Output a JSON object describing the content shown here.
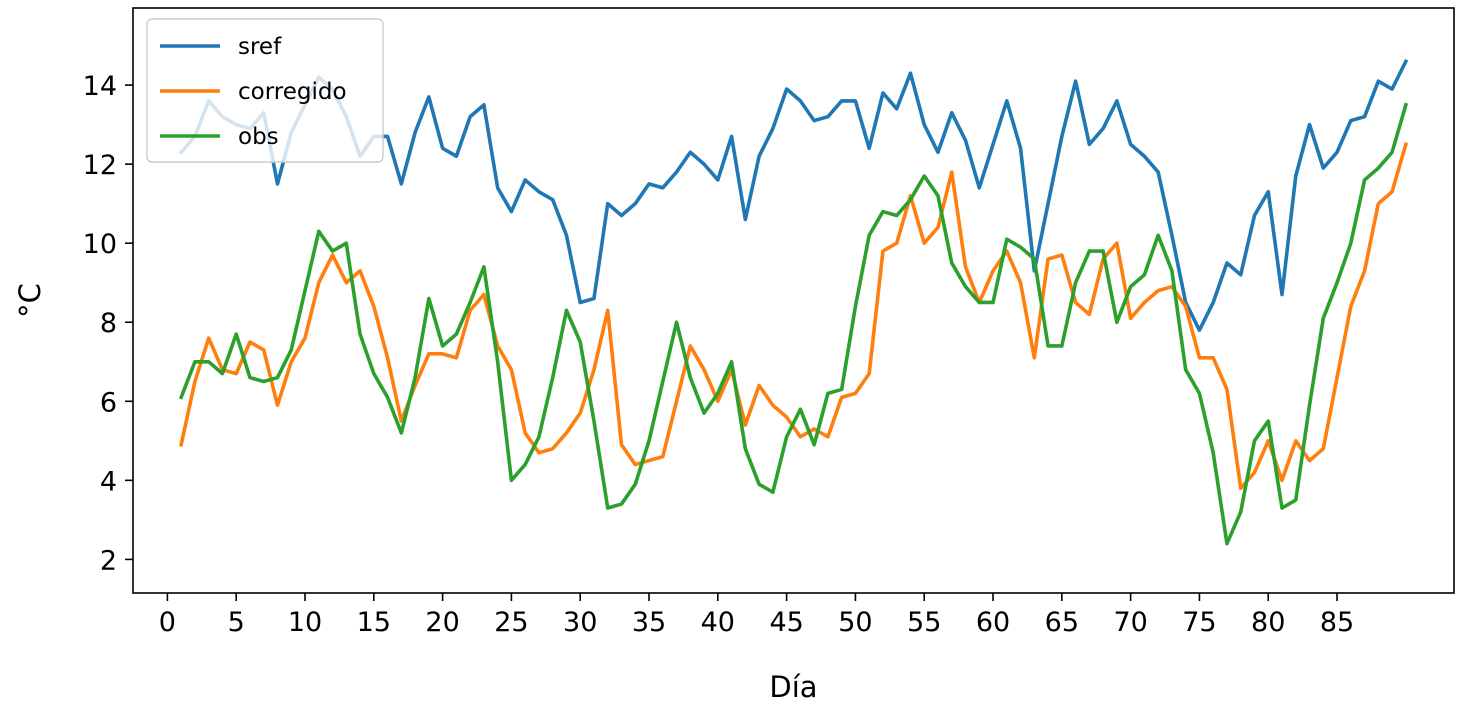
{
  "chart_data": {
    "type": "line",
    "title": "",
    "xlabel": "Día",
    "ylabel": "°C",
    "xlim": [
      -2.5,
      93.5
    ],
    "ylim": [
      1.15,
      15.95
    ],
    "xticks": [
      0,
      5,
      10,
      15,
      20,
      25,
      30,
      35,
      40,
      45,
      50,
      55,
      60,
      65,
      70,
      75,
      80,
      85
    ],
    "yticks": [
      2,
      4,
      6,
      8,
      10,
      12,
      14
    ],
    "grid": false,
    "legend": {
      "placement": "top-left"
    },
    "x": [
      1,
      2,
      3,
      4,
      5,
      6,
      7,
      8,
      9,
      10,
      11,
      12,
      13,
      14,
      15,
      16,
      17,
      18,
      19,
      20,
      21,
      22,
      23,
      24,
      25,
      26,
      27,
      28,
      29,
      30,
      31,
      32,
      33,
      34,
      35,
      36,
      37,
      38,
      39,
      40,
      41,
      42,
      43,
      44,
      45,
      46,
      47,
      48,
      49,
      50,
      51,
      52,
      53,
      54,
      55,
      56,
      57,
      58,
      59,
      60,
      61,
      62,
      63,
      64,
      65,
      66,
      67,
      68,
      69,
      70,
      71,
      72,
      73,
      74,
      75,
      76,
      77,
      78,
      79,
      80,
      81,
      82,
      83,
      84,
      85,
      86,
      87,
      88,
      89,
      90
    ],
    "series": [
      {
        "name": "sref",
        "color": "#1f77b4",
        "values": [
          12.3,
          12.7,
          13.6,
          13.2,
          13.0,
          12.9,
          13.3,
          11.5,
          12.8,
          13.5,
          14.2,
          13.9,
          13.2,
          12.2,
          12.7,
          12.7,
          11.5,
          12.8,
          13.7,
          12.4,
          12.2,
          13.2,
          13.5,
          11.4,
          10.8,
          11.6,
          11.3,
          11.1,
          10.2,
          8.5,
          8.6,
          11.0,
          10.7,
          11.0,
          11.5,
          11.4,
          11.8,
          12.3,
          12.0,
          11.6,
          12.7,
          10.6,
          12.2,
          12.9,
          13.9,
          13.6,
          13.1,
          13.2,
          13.6,
          13.6,
          12.4,
          13.8,
          13.4,
          14.3,
          13.0,
          12.3,
          13.3,
          12.6,
          11.4,
          12.5,
          13.6,
          12.4,
          9.3,
          11.0,
          12.7,
          14.1,
          12.5,
          12.9,
          13.6,
          12.5,
          12.2,
          11.8,
          10.2,
          8.5,
          7.8,
          8.5,
          9.5,
          9.2,
          10.7,
          11.3,
          8.7,
          11.7,
          13.0,
          11.9,
          12.3,
          13.1,
          13.2,
          14.1,
          13.9,
          14.6
        ]
      },
      {
        "name": "corregido",
        "color": "#ff7f0e",
        "values": [
          4.9,
          6.5,
          7.6,
          6.8,
          6.7,
          7.5,
          7.3,
          5.9,
          7.0,
          7.6,
          9.0,
          9.7,
          9.0,
          9.3,
          8.4,
          7.1,
          5.5,
          6.4,
          7.2,
          7.2,
          7.1,
          8.3,
          8.7,
          7.4,
          6.8,
          5.2,
          4.7,
          4.8,
          5.2,
          5.7,
          6.8,
          8.3,
          4.9,
          4.4,
          4.5,
          4.6,
          6.0,
          7.4,
          6.8,
          6.0,
          6.8,
          5.4,
          6.4,
          5.9,
          5.6,
          5.1,
          5.3,
          5.1,
          6.1,
          6.2,
          6.7,
          9.8,
          10.0,
          11.2,
          10.0,
          10.4,
          11.8,
          9.4,
          8.5,
          9.3,
          9.8,
          9.0,
          7.1,
          9.6,
          9.7,
          8.5,
          8.2,
          9.6,
          10.0,
          8.1,
          8.5,
          8.8,
          8.9,
          8.4,
          7.1,
          7.1,
          6.3,
          3.8,
          4.2,
          5.0,
          4.0,
          5.0,
          4.5,
          4.8,
          6.6,
          8.4,
          9.3,
          11.0,
          11.3,
          12.5
        ]
      },
      {
        "name": "obs",
        "color": "#2ca02c",
        "values": [
          6.1,
          7.0,
          7.0,
          6.7,
          7.7,
          6.6,
          6.5,
          6.6,
          7.3,
          8.8,
          10.3,
          9.8,
          10.0,
          7.7,
          6.7,
          6.1,
          5.2,
          6.6,
          8.6,
          7.4,
          7.7,
          8.5,
          9.4,
          7.0,
          4.0,
          4.4,
          5.1,
          6.6,
          8.3,
          7.5,
          5.5,
          3.3,
          3.4,
          3.9,
          5.0,
          6.5,
          8.0,
          6.6,
          5.7,
          6.2,
          7.0,
          4.8,
          3.9,
          3.7,
          5.1,
          5.8,
          4.9,
          6.2,
          6.3,
          8.4,
          10.2,
          10.8,
          10.7,
          11.1,
          11.7,
          11.2,
          9.5,
          8.9,
          8.5,
          8.5,
          10.1,
          9.9,
          9.6,
          7.4,
          7.4,
          9.0,
          9.8,
          9.8,
          8.0,
          8.9,
          9.2,
          10.2,
          9.3,
          6.8,
          6.2,
          4.7,
          2.4,
          3.2,
          5.0,
          5.5,
          3.3,
          3.5,
          5.9,
          8.1,
          9.0,
          10.0,
          11.6,
          11.9,
          12.3,
          13.5
        ]
      }
    ]
  }
}
